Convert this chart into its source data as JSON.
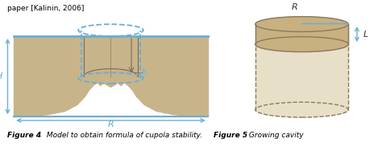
{
  "bg_color": "#ffffff",
  "soil_color": "#c8b48a",
  "cave_color": "#ffffff",
  "blue": "#6aaed6",
  "dark_outline": "#7a6a50",
  "cyl_top_color": "#c8b080",
  "cyl_body_color": "#e8dfc8",
  "cyl_outline": "#8a7a60",
  "top_text": "paper [Kalinin, 2006]",
  "caption1_bold": "Figure 4",
  "caption1_italic": " Model to obtain formula of cupola stability.",
  "caption2_bold": "Figure 5",
  "caption2_italic": " Growing cavity"
}
